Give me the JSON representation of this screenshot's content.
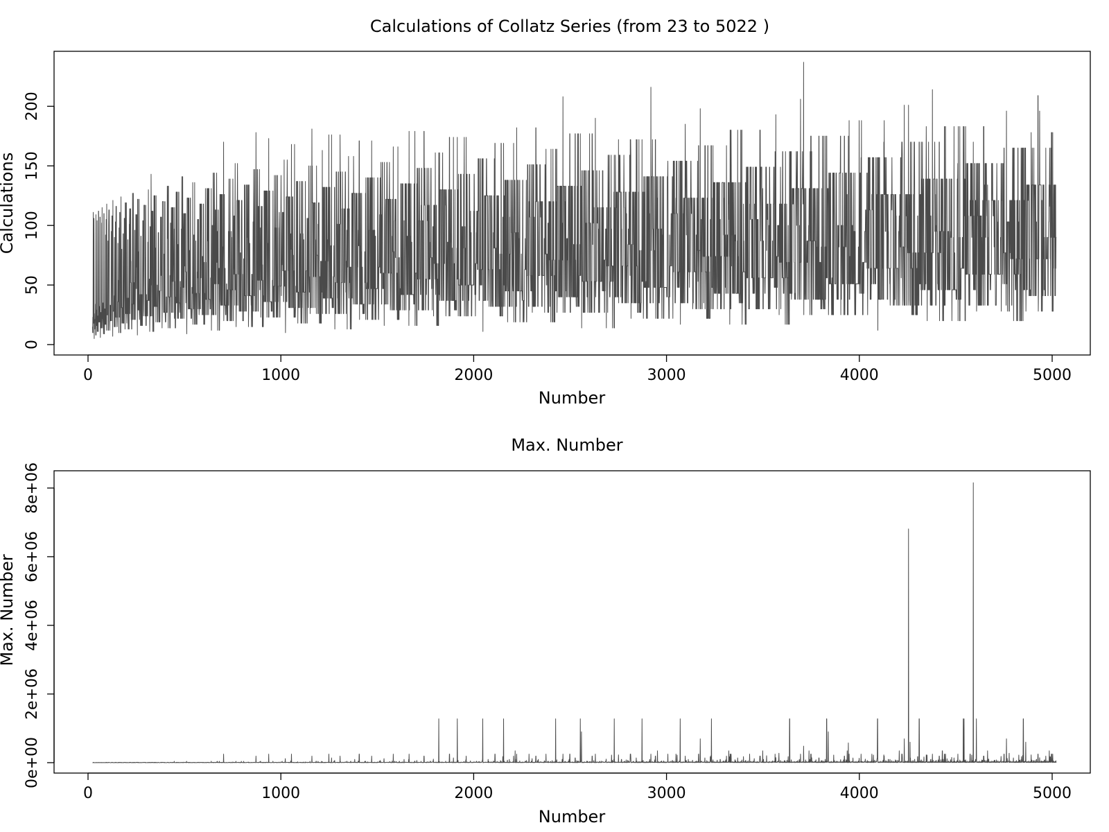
{
  "colors": {
    "series": "#4a4a4a",
    "axes": "#000000",
    "background": "#ffffff"
  },
  "chart_data": [
    {
      "type": "line",
      "title": "Calculations of Collatz Series (from 23 to 5022 )",
      "xlabel": "Number",
      "ylabel": "Calculations",
      "xlim": [
        23,
        5022
      ],
      "ylim": [
        0,
        238
      ],
      "xticks": [
        0,
        1000,
        2000,
        3000,
        4000,
        5000
      ],
      "yticks": [
        0,
        50,
        100,
        150,
        200
      ],
      "xtick_labels": [
        "0",
        "1000",
        "2000",
        "3000",
        "4000",
        "5000"
      ],
      "ytick_labels": [
        "0",
        "50",
        "100",
        "150",
        "200"
      ],
      "grid": false,
      "series": [
        {
          "generator": "collatz_steps",
          "x_start": 23,
          "x_end": 5022,
          "values": "steps to reach 1 for each integer from 23 to 5022"
        }
      ]
    },
    {
      "type": "line",
      "title": "Max. Number",
      "xlabel": "Number",
      "ylabel": "Max. Number",
      "xlim": [
        23,
        5022
      ],
      "ylim": [
        0,
        8200000
      ],
      "xticks": [
        0,
        1000,
        2000,
        3000,
        4000,
        5000
      ],
      "yticks": [
        0,
        2000000,
        4000000,
        6000000,
        8000000
      ],
      "xtick_labels": [
        "0",
        "1000",
        "2000",
        "3000",
        "4000",
        "5000"
      ],
      "ytick_labels": [
        "0e+00",
        "2e+06",
        "4e+06",
        "6e+06",
        "8e+06"
      ],
      "grid": false,
      "series": [
        {
          "generator": "collatz_max",
          "x_start": 23,
          "x_end": 5022,
          "values": "maximum value reached in the Collatz sequence for each integer from 23 to 5022"
        }
      ]
    }
  ]
}
